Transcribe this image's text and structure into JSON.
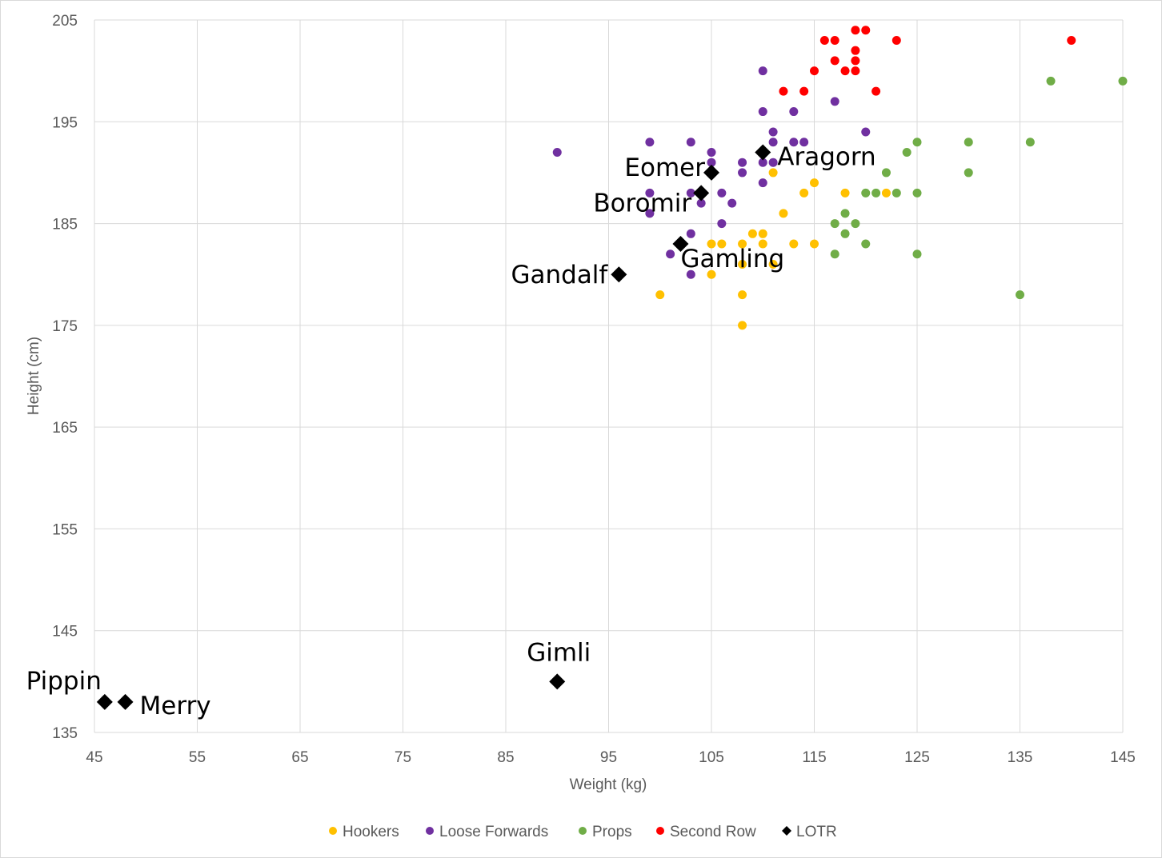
{
  "chart_data": {
    "type": "scatter",
    "title": "",
    "xlabel": "Weight (kg)",
    "ylabel": "Height (cm)",
    "xlim": [
      45,
      145
    ],
    "ylim": [
      135,
      205
    ],
    "xticks": [
      "45",
      "55",
      "65",
      "75",
      "85",
      "95",
      "105",
      "115",
      "125",
      "135",
      "145"
    ],
    "yticks": [
      "135",
      "145",
      "155",
      "165",
      "175",
      "185",
      "195",
      "205"
    ],
    "grid": true,
    "legend_position": "bottom",
    "series": [
      {
        "name": "Hookers",
        "color": "#ffc000",
        "marker": "circle",
        "points": [
          [
            100,
            178
          ],
          [
            105,
            180
          ],
          [
            105,
            183
          ],
          [
            106,
            183
          ],
          [
            108,
            183
          ],
          [
            108,
            181
          ],
          [
            108,
            178
          ],
          [
            108,
            175
          ],
          [
            109,
            184
          ],
          [
            110,
            184
          ],
          [
            110,
            183
          ],
          [
            111,
            190
          ],
          [
            111,
            181
          ],
          [
            112,
            186
          ],
          [
            113,
            183
          ],
          [
            114,
            188
          ],
          [
            115,
            189
          ],
          [
            115,
            183
          ],
          [
            118,
            188
          ],
          [
            122,
            188
          ]
        ]
      },
      {
        "name": "Loose Forwards",
        "color": "#7030a0",
        "marker": "circle",
        "points": [
          [
            90,
            192
          ],
          [
            99,
            193
          ],
          [
            99,
            188
          ],
          [
            99,
            186
          ],
          [
            101,
            182
          ],
          [
            103,
            193
          ],
          [
            103,
            188
          ],
          [
            103,
            184
          ],
          [
            103,
            180
          ],
          [
            104,
            187
          ],
          [
            105,
            192
          ],
          [
            105,
            191
          ],
          [
            106,
            188
          ],
          [
            106,
            185
          ],
          [
            107,
            187
          ],
          [
            108,
            191
          ],
          [
            108,
            190
          ],
          [
            110,
            200
          ],
          [
            110,
            196
          ],
          [
            110,
            191
          ],
          [
            110,
            189
          ],
          [
            111,
            194
          ],
          [
            111,
            193
          ],
          [
            111,
            191
          ],
          [
            113,
            196
          ],
          [
            113,
            193
          ],
          [
            114,
            193
          ],
          [
            117,
            197
          ],
          [
            120,
            194
          ]
        ]
      },
      {
        "name": "Props",
        "color": "#70ad47",
        "marker": "circle",
        "points": [
          [
            117,
            185
          ],
          [
            117,
            182
          ],
          [
            118,
            186
          ],
          [
            118,
            184
          ],
          [
            119,
            185
          ],
          [
            120,
            188
          ],
          [
            120,
            183
          ],
          [
            121,
            188
          ],
          [
            122,
            190
          ],
          [
            123,
            188
          ],
          [
            124,
            192
          ],
          [
            125,
            193
          ],
          [
            125,
            188
          ],
          [
            125,
            182
          ],
          [
            130,
            193
          ],
          [
            130,
            190
          ],
          [
            135,
            178
          ],
          [
            136,
            193
          ],
          [
            138,
            199
          ],
          [
            145,
            199
          ]
        ]
      },
      {
        "name": "Second Row",
        "color": "#ff0000",
        "marker": "circle",
        "points": [
          [
            112,
            198
          ],
          [
            114,
            198
          ],
          [
            115,
            200
          ],
          [
            116,
            203
          ],
          [
            117,
            203
          ],
          [
            117,
            201
          ],
          [
            118,
            200
          ],
          [
            119,
            204
          ],
          [
            119,
            202
          ],
          [
            119,
            201
          ],
          [
            119,
            200
          ],
          [
            120,
            204
          ],
          [
            121,
            198
          ],
          [
            123,
            203
          ],
          [
            140,
            203
          ]
        ]
      },
      {
        "name": "LOTR",
        "color": "#000000",
        "marker": "diamond",
        "points": [
          [
            110,
            192
          ],
          [
            105,
            190
          ],
          [
            104,
            188
          ],
          [
            102,
            183
          ],
          [
            96,
            180
          ],
          [
            90,
            140
          ],
          [
            46,
            138
          ],
          [
            48,
            138
          ]
        ],
        "labels": [
          "Aragorn",
          "Eomer",
          "Boromir",
          "Gamling",
          "Gandalf",
          "Gimli",
          "Pippin",
          "Merry"
        ]
      }
    ]
  }
}
